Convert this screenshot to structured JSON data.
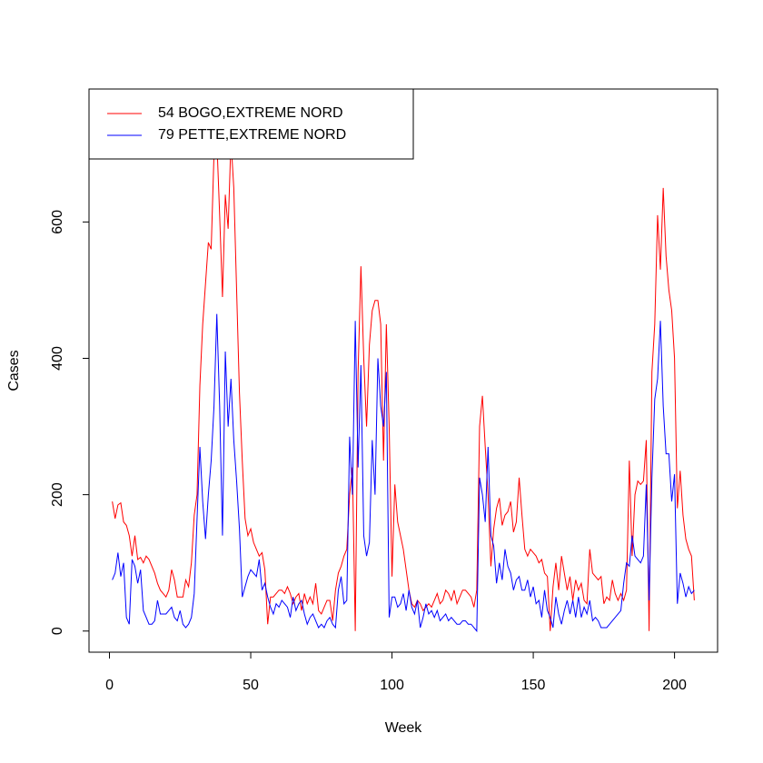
{
  "chart_data": {
    "type": "line",
    "x_label": "Week",
    "y_label": "Cases",
    "xlim": [
      -7.24,
      215.24
    ],
    "ylim": [
      -31,
      795
    ],
    "xticks": [
      0,
      50,
      100,
      150,
      200
    ],
    "yticks": [
      0,
      200,
      400,
      600
    ],
    "legend": "topleft",
    "x": [
      1,
      2,
      3,
      4,
      5,
      6,
      7,
      8,
      9,
      10,
      11,
      12,
      13,
      14,
      15,
      16,
      17,
      18,
      19,
      20,
      21,
      22,
      23,
      24,
      25,
      26,
      27,
      28,
      29,
      30,
      31,
      32,
      33,
      34,
      35,
      36,
      37,
      38,
      39,
      40,
      41,
      42,
      43,
      44,
      45,
      46,
      47,
      48,
      49,
      50,
      51,
      52,
      53,
      54,
      55,
      56,
      57,
      58,
      59,
      60,
      61,
      62,
      63,
      64,
      65,
      66,
      67,
      68,
      69,
      70,
      71,
      72,
      73,
      74,
      75,
      76,
      77,
      78,
      79,
      80,
      81,
      82,
      83,
      84,
      85,
      86,
      87,
      88,
      89,
      90,
      91,
      92,
      93,
      94,
      95,
      96,
      97,
      98,
      99,
      100,
      101,
      102,
      103,
      104,
      105,
      106,
      107,
      108,
      109,
      110,
      111,
      112,
      113,
      114,
      115,
      116,
      117,
      118,
      119,
      120,
      121,
      122,
      123,
      124,
      125,
      126,
      127,
      128,
      129,
      130,
      131,
      132,
      133,
      134,
      135,
      136,
      137,
      138,
      139,
      140,
      141,
      142,
      143,
      144,
      145,
      146,
      147,
      148,
      149,
      150,
      151,
      152,
      153,
      154,
      155,
      156,
      157,
      158,
      159,
      160,
      161,
      162,
      163,
      164,
      165,
      166,
      167,
      168,
      169,
      170,
      171,
      172,
      173,
      174,
      175,
      176,
      177,
      178,
      179,
      180,
      181,
      182,
      183,
      184,
      185,
      186,
      187,
      188,
      189,
      190,
      191,
      192,
      193,
      194,
      195,
      196,
      197,
      198,
      199,
      200,
      201,
      202,
      203,
      204,
      205,
      206,
      207
    ],
    "series": [
      {
        "name": "54 BOGO,EXTREME NORD",
        "color": "#ff0000",
        "values": [
          190,
          165,
          185,
          188,
          160,
          155,
          140,
          110,
          140,
          105,
          108,
          100,
          110,
          105,
          95,
          85,
          70,
          60,
          55,
          50,
          60,
          90,
          75,
          50,
          50,
          50,
          75,
          65,
          100,
          170,
          200,
          360,
          450,
          510,
          570,
          560,
          700,
          720,
          610,
          490,
          640,
          590,
          720,
          650,
          500,
          350,
          250,
          165,
          140,
          150,
          130,
          120,
          110,
          115,
          90,
          10,
          50,
          50,
          55,
          60,
          60,
          55,
          65,
          55,
          40,
          50,
          55,
          30,
          55,
          40,
          50,
          40,
          70,
          30,
          25,
          35,
          45,
          45,
          15,
          60,
          85,
          95,
          110,
          120,
          200,
          240,
          0,
          380,
          535,
          400,
          300,
          420,
          470,
          485,
          485,
          450,
          250,
          450,
          300,
          80,
          215,
          160,
          140,
          120,
          90,
          60,
          40,
          35,
          45,
          40,
          30,
          35,
          40,
          35,
          45,
          55,
          40,
          45,
          60,
          55,
          45,
          60,
          40,
          50,
          60,
          60,
          55,
          50,
          35,
          60,
          300,
          345,
          270,
          200,
          95,
          150,
          180,
          195,
          155,
          170,
          175,
          190,
          145,
          160,
          225,
          170,
          120,
          110,
          120,
          115,
          110,
          100,
          105,
          85,
          80,
          0,
          65,
          100,
          60,
          110,
          85,
          60,
          80,
          45,
          75,
          60,
          70,
          45,
          40,
          120,
          85,
          80,
          75,
          80,
          40,
          50,
          45,
          75,
          55,
          45,
          55,
          45,
          60,
          250,
          110,
          200,
          220,
          215,
          220,
          280,
          0,
          380,
          450,
          610,
          530,
          650,
          550,
          500,
          470,
          400,
          180,
          235,
          170,
          135,
          120,
          110,
          45
        ]
      },
      {
        "name": "79 PETTE,EXTREME NORD",
        "color": "#0000ff",
        "values": [
          75,
          85,
          115,
          80,
          100,
          20,
          10,
          105,
          95,
          70,
          90,
          30,
          20,
          10,
          10,
          15,
          45,
          25,
          25,
          25,
          30,
          35,
          20,
          15,
          30,
          10,
          5,
          10,
          20,
          55,
          165,
          270,
          190,
          135,
          200,
          250,
          330,
          465,
          330,
          140,
          410,
          300,
          370,
          280,
          220,
          150,
          50,
          65,
          80,
          90,
          85,
          80,
          105,
          60,
          70,
          50,
          35,
          25,
          40,
          35,
          45,
          40,
          35,
          20,
          50,
          30,
          40,
          45,
          25,
          10,
          20,
          25,
          15,
          5,
          10,
          5,
          15,
          20,
          10,
          5,
          60,
          80,
          40,
          45,
          285,
          200,
          455,
          240,
          390,
          140,
          110,
          130,
          280,
          200,
          400,
          330,
          300,
          380,
          20,
          50,
          50,
          35,
          40,
          55,
          30,
          60,
          35,
          25,
          45,
          5,
          20,
          40,
          25,
          30,
          20,
          30,
          15,
          20,
          25,
          15,
          20,
          15,
          10,
          10,
          15,
          15,
          10,
          10,
          5,
          0,
          225,
          200,
          160,
          270,
          140,
          125,
          70,
          100,
          75,
          120,
          95,
          85,
          60,
          75,
          80,
          60,
          60,
          75,
          50,
          65,
          40,
          45,
          20,
          60,
          30,
          20,
          5,
          50,
          25,
          10,
          30,
          45,
          25,
          45,
          20,
          50,
          20,
          35,
          25,
          45,
          15,
          20,
          15,
          5,
          5,
          5,
          10,
          15,
          20,
          25,
          30,
          70,
          100,
          95,
          140,
          110,
          105,
          100,
          110,
          215,
          45,
          225,
          340,
          370,
          455,
          330,
          260,
          260,
          190,
          230,
          40,
          85,
          70,
          50,
          65,
          55,
          60
        ]
      }
    ]
  }
}
